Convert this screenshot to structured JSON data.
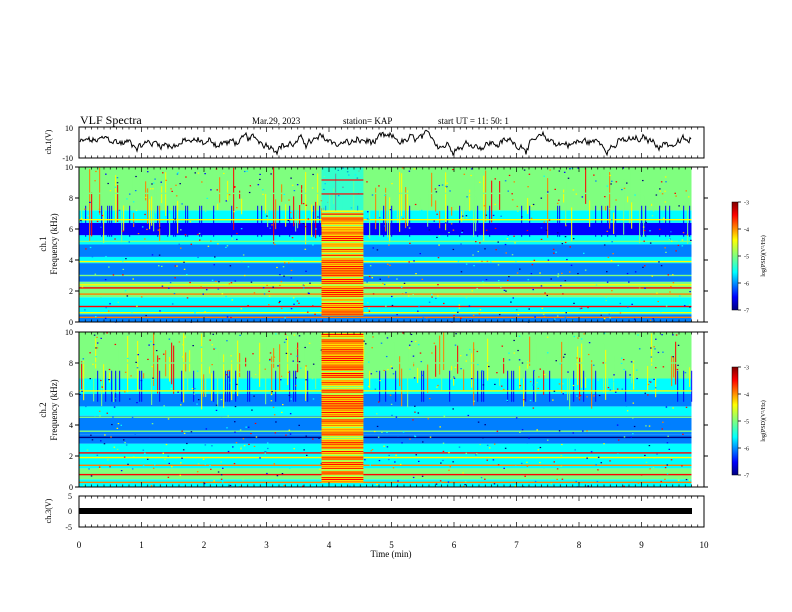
{
  "header": {
    "title": "VLF Spectra",
    "date": "Mar.29, 2023",
    "station": "station= KAP",
    "start": "start  UT =   11: 50: 1"
  },
  "chart_data": [
    {
      "type": "line",
      "ylabel": "ch.1(V)",
      "ylim": [
        -10,
        10
      ],
      "yticks": [
        "10",
        "-10"
      ],
      "xlim": [
        0,
        10
      ],
      "note": "random-looking waveform fluctuating roughly between -6 and 6 V over 0-9.8 min"
    },
    {
      "type": "heatmap",
      "ylabel_line1": "ch.1",
      "ylabel_line2": "Frequency (kHz)",
      "ylim": [
        0,
        10
      ],
      "yticks": [
        "0",
        "2",
        "4",
        "6",
        "8",
        "10"
      ],
      "xlim": [
        0,
        10
      ],
      "data_end_min": 9.8,
      "colorbar": {
        "label": "log(PSD)(V²/Hz)",
        "range": [
          -7,
          -3
        ],
        "ticks": [
          "-3",
          "-4",
          "-5",
          "-6",
          "-7"
        ]
      }
    },
    {
      "type": "heatmap",
      "ylabel_line1": "ch.2",
      "ylabel_line2": "Frequency (kHz)",
      "ylim": [
        0,
        10
      ],
      "yticks": [
        "0",
        "2",
        "4",
        "6",
        "8",
        "10"
      ],
      "xlim": [
        0,
        10
      ],
      "data_end_min": 9.8,
      "colorbar": {
        "label": "log(PSD)(V²/Hz)",
        "range": [
          -7,
          -3
        ],
        "ticks": [
          "-3",
          "-4",
          "-5",
          "-6",
          "-7"
        ]
      }
    },
    {
      "type": "line",
      "ylabel": "ch.3(V)",
      "ylim": [
        -5,
        5
      ],
      "yticks": [
        "5",
        "0",
        "-5"
      ],
      "xlim": [
        0,
        10
      ],
      "note": "near-constant thick trace at about -1 V"
    }
  ],
  "xaxis": {
    "label": "Time  (min)",
    "ticks": [
      "0",
      "1",
      "2",
      "3",
      "4",
      "5",
      "6",
      "7",
      "8",
      "9",
      "10"
    ]
  },
  "colors": {
    "jet": [
      "#00007f",
      "#0000ff",
      "#007fff",
      "#00ffff",
      "#7fff7f",
      "#ffff00",
      "#ff7f00",
      "#ff0000",
      "#7f0000"
    ]
  }
}
